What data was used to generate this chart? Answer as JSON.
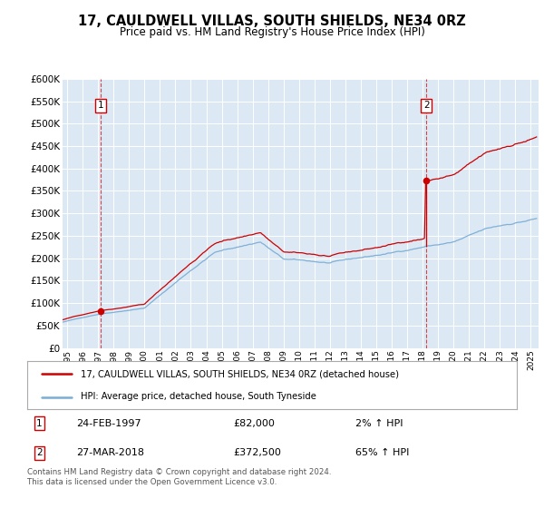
{
  "title": "17, CAULDWELL VILLAS, SOUTH SHIELDS, NE34 0RZ",
  "subtitle": "Price paid vs. HM Land Registry's House Price Index (HPI)",
  "legend_line1": "17, CAULDWELL VILLAS, SOUTH SHIELDS, NE34 0RZ (detached house)",
  "legend_line2": "HPI: Average price, detached house, South Tyneside",
  "footnote": "Contains HM Land Registry data © Crown copyright and database right 2024.\nThis data is licensed under the Open Government Licence v3.0.",
  "sale1_date": "24-FEB-1997",
  "sale1_price": 82000,
  "sale1_label": "2% ↑ HPI",
  "sale2_date": "27-MAR-2018",
  "sale2_price": 372500,
  "sale2_label": "65% ↑ HPI",
  "hpi_color": "#7aadd4",
  "price_color": "#cc0000",
  "vline_color": "#cc0000",
  "bg_color": "#dde8f5",
  "ylim": [
    0,
    600000
  ],
  "yticks": [
    0,
    50000,
    100000,
    150000,
    200000,
    250000,
    300000,
    350000,
    400000,
    450000,
    500000,
    550000,
    600000
  ],
  "xlim_start": 1994.7,
  "xlim_end": 2025.5,
  "sale1_x": 1997.15,
  "sale2_x": 2018.23
}
